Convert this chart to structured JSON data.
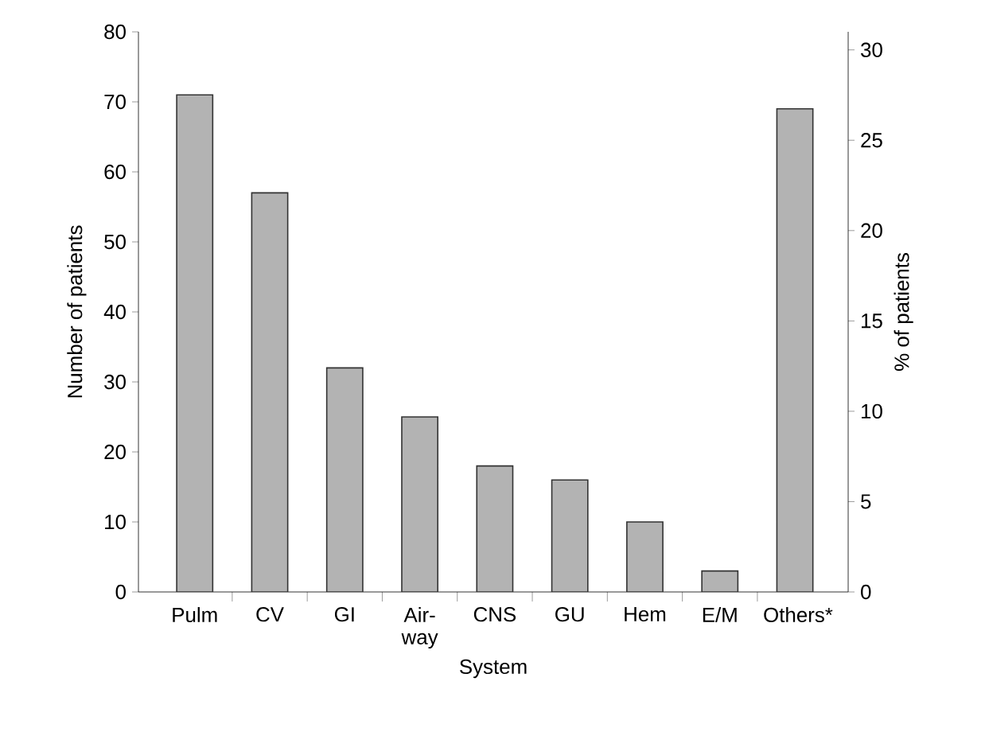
{
  "chart_data": {
    "type": "bar",
    "categories": [
      "Pulm",
      "CV",
      "GI",
      "Air-way",
      "CNS",
      "GU",
      "Hem",
      "E/M",
      "Others*"
    ],
    "values": [
      71,
      57,
      32,
      25,
      18,
      16,
      10,
      3,
      69
    ],
    "color": "#b3b3b3",
    "xlabel": "System",
    "ylabel": "Number of patients",
    "y2label": "% of patients",
    "ylim": [
      0,
      80
    ],
    "yticks": [
      0,
      10,
      20,
      30,
      40,
      50,
      60,
      70,
      80
    ],
    "y2lim": [
      0,
      31
    ],
    "y2ticks": [
      0,
      5,
      10,
      15,
      20,
      25,
      30
    ],
    "grid": false
  }
}
